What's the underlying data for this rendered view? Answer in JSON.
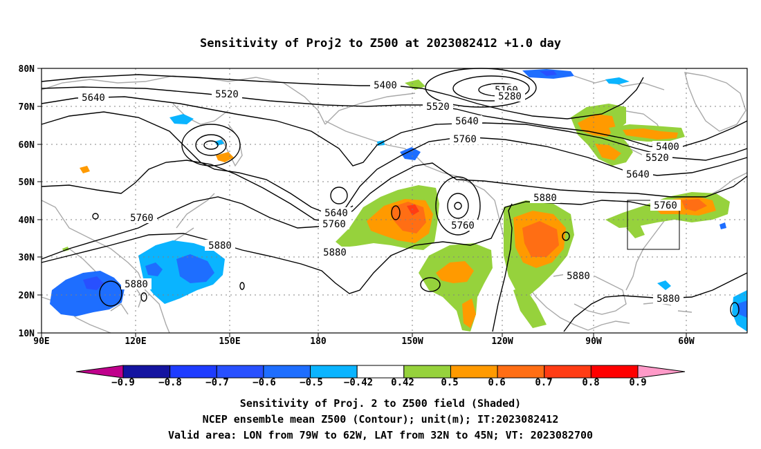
{
  "figure": {
    "title": "Sensitivity of Proj2 to Z500 at 2023082412 +1.0 day"
  },
  "map": {
    "lon_ticks": [
      "90E",
      "120E",
      "150E",
      "180",
      "150W",
      "120W",
      "90W",
      "60W"
    ],
    "lat_ticks": [
      "80N",
      "70N",
      "60N",
      "50N",
      "40N",
      "30N",
      "20N",
      "10N"
    ],
    "contour_labels": [
      "5400",
      "5160",
      "5280",
      "5520",
      "5640",
      "5520",
      "5640",
      "5760",
      "5400",
      "5520",
      "5640",
      "5640",
      "5760",
      "5760",
      "5760",
      "5880",
      "5880",
      "5880",
      "5880",
      "5880",
      "5760",
      "5880"
    ],
    "valid_box": {
      "lon_range": [
        "79W",
        "62W"
      ],
      "lat_range": [
        "32N",
        "45N"
      ]
    },
    "colors": {
      "contour": "#000000",
      "coastline": "#a8a8a8",
      "grid": "#808080"
    }
  },
  "colorbar": {
    "labels": [
      "−0.9",
      "−0.8",
      "−0.7",
      "−0.6",
      "−0.5",
      "−0.42",
      "0.42",
      "0.5",
      "0.6",
      "0.7",
      "0.8",
      "0.9"
    ],
    "colors": [
      "#c0008c",
      "#1414a0",
      "#1e3cff",
      "#2850ff",
      "#1e6eff",
      "#0ab4ff",
      "#ffffff",
      "#96d23c",
      "#ff9a00",
      "#ff6e14",
      "#ff3c14",
      "#ff0000",
      "#ff9ac8"
    ]
  },
  "caption": {
    "line1": "Sensitivity of Proj. 2 to Z500 field (Shaded)",
    "line2": "NCEP ensemble mean Z500 (Contour); unit(m); IT:2023082412",
    "line3": "Valid area: LON from 79W to 62W, LAT from 32N to 45N; VT: 2023082700"
  }
}
